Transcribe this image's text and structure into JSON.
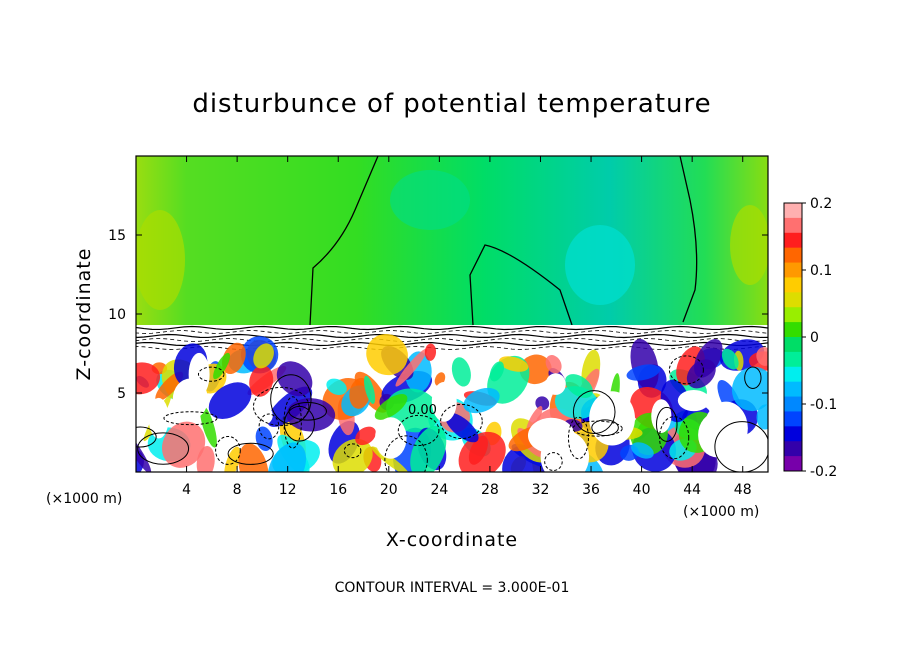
{
  "chart_data": {
    "type": "heatmap",
    "title": "disturbunce of potential temperature",
    "xlabel": "X-coordinate",
    "ylabel": "Z-coordinate",
    "x_unit": "(×1000 m)",
    "z_unit": "(×1000 m)",
    "xlim": [
      0,
      50
    ],
    "ylim": [
      0,
      20
    ],
    "x_ticks": [
      4,
      8,
      12,
      16,
      20,
      24,
      28,
      32,
      36,
      40,
      44,
      48
    ],
    "y_ticks": [
      5,
      10,
      15
    ],
    "colorbar": {
      "range": [
        -0.2,
        0.2
      ],
      "tick_labels": [
        "0.2",
        "0.1",
        "0",
        "-0.1",
        "-0.2"
      ],
      "tick_values": [
        0.2,
        0.1,
        0,
        -0.1,
        -0.2
      ],
      "colors": [
        "#ffb0b0",
        "#ff7070",
        "#ff1e1e",
        "#ff6600",
        "#ff9900",
        "#ffcc00",
        "#dddd00",
        "#99ee00",
        "#33dd00",
        "#00dd66",
        "#00ee99",
        "#00eeee",
        "#00bbff",
        "#0088ff",
        "#0044ff",
        "#0000dd",
        "#3300aa",
        "#7700aa"
      ]
    },
    "contour_labels": [
      "0.00"
    ],
    "contour_interval_text": "CONTOUR INTERVAL = 3.000E-01",
    "grid": false,
    "legend": "colorbar right"
  }
}
